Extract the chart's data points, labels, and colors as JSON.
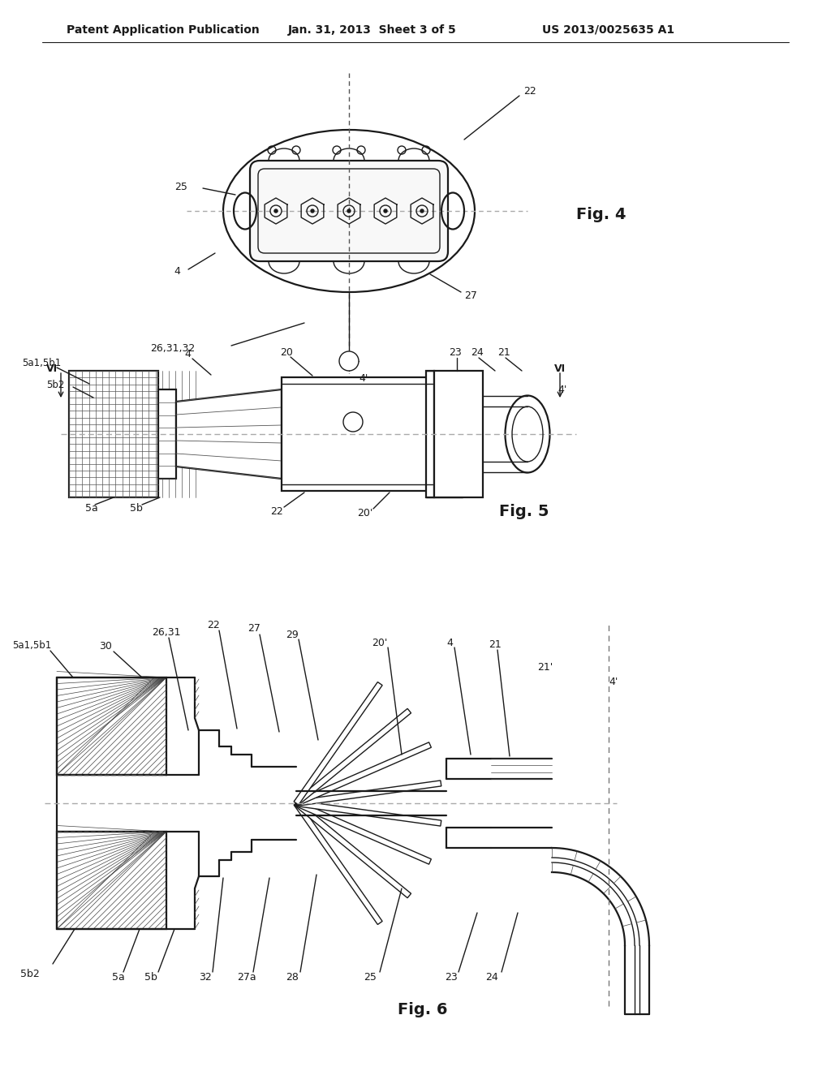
{
  "bg_color": "#ffffff",
  "header_left": "Patent Application Publication",
  "header_mid": "Jan. 31, 2013  Sheet 3 of 5",
  "header_right": "US 2013/0025635 A1",
  "line_color": "#1a1a1a",
  "fig4_label": "Fig. 4",
  "fig5_label": "Fig. 5",
  "fig6_label": "Fig. 6"
}
